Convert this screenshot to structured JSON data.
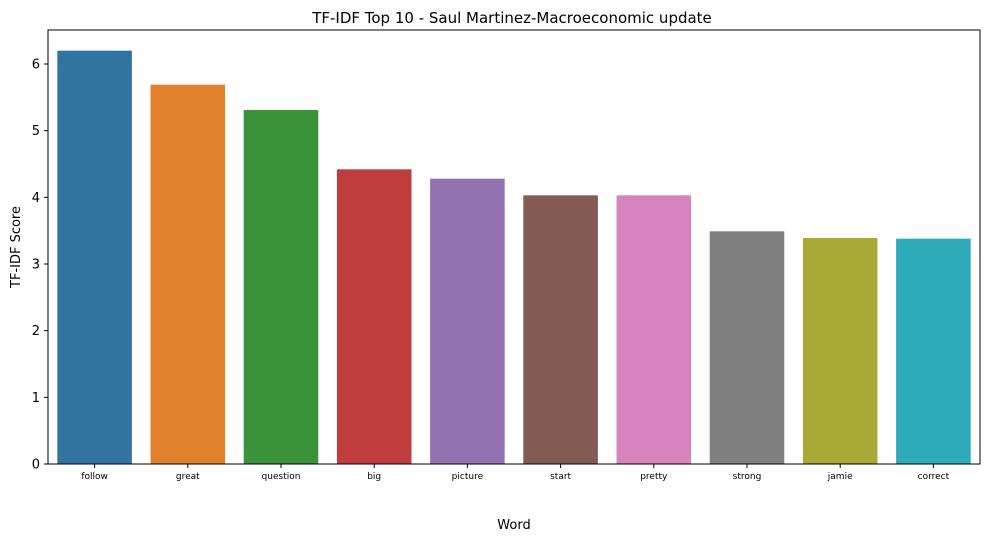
{
  "chart_data": {
    "type": "bar",
    "title": "TF-IDF Top 10 - Saul Martinez-Macroeconomic update",
    "xlabel": "Word",
    "ylabel": "TF-IDF Score",
    "categories": [
      "follow",
      "great",
      "question",
      "big",
      "picture",
      "start",
      "pretty",
      "strong",
      "jamie",
      "correct"
    ],
    "values": [
      6.2,
      5.69,
      5.31,
      4.42,
      4.28,
      4.03,
      4.03,
      3.49,
      3.39,
      3.38
    ],
    "colors": [
      "#3274a1",
      "#e1812c",
      "#3a923a",
      "#c03d3e",
      "#9372b2",
      "#845b53",
      "#d684bd",
      "#7f7f7f",
      "#a9aa35",
      "#2eabb8"
    ],
    "ylim": [
      0,
      6.51
    ],
    "yticks": [
      0,
      1,
      2,
      3,
      4,
      5,
      6
    ],
    "grid": false,
    "legend": "none"
  }
}
